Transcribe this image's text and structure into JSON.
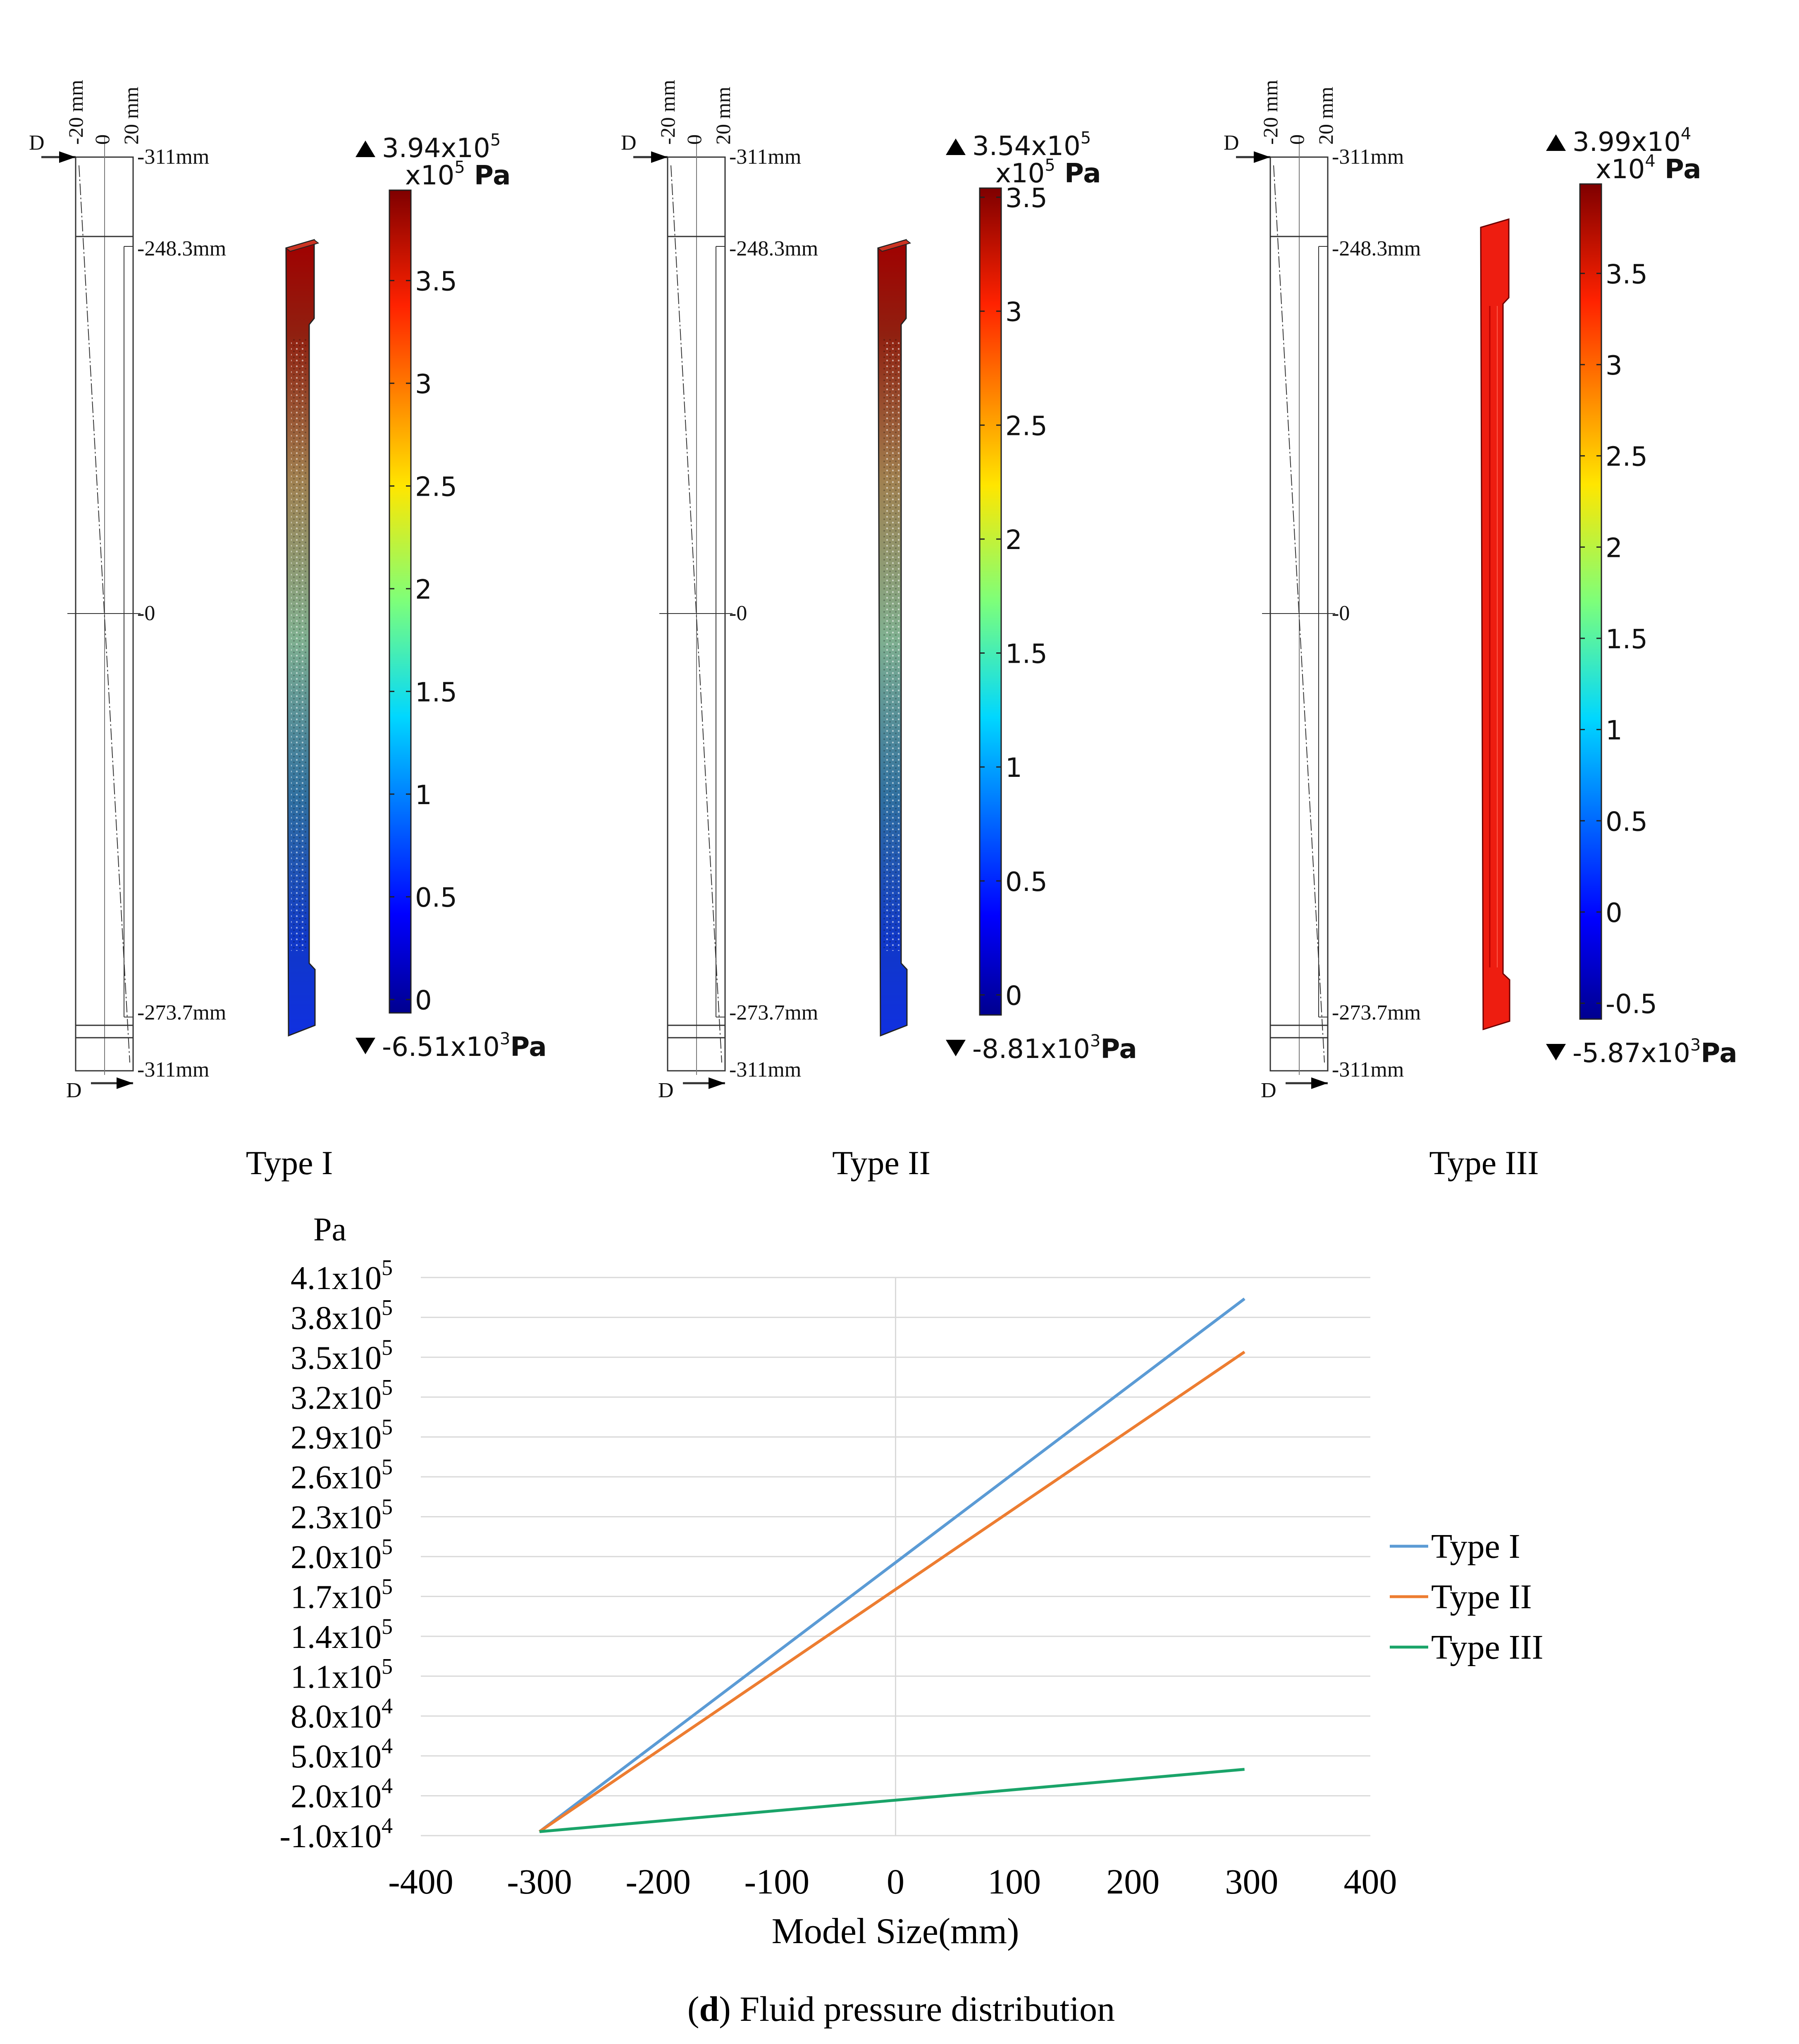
{
  "panels": [
    {
      "label": "Type I",
      "dims": {
        "top_width": "-20 mm",
        "zero": "0",
        "right_width": "20 mm",
        "section_marker": "D",
        "top": "-311mm",
        "upper": "-248.3mm",
        "middle": "-0",
        "lower": "-273.7mm",
        "bottom": "-311mm"
      },
      "legend": {
        "max_label": "3.94x10",
        "max_exp": "5",
        "unit_mult": "x10",
        "unit_exp": "5",
        "unit": "Pa",
        "min_label": "-6.51x10",
        "min_exp": "3",
        "min_unit": "Pa",
        "ticks": [
          "3.5",
          "3",
          "2.5",
          "2",
          "1.5",
          "1",
          "0.5",
          "0"
        ],
        "tick_values": [
          3.5,
          3,
          2.5,
          2,
          1.5,
          1,
          0.5,
          0
        ],
        "range": [
          -0.0651,
          3.94
        ]
      },
      "model": "gradient"
    },
    {
      "label": "Type II",
      "dims": {
        "top_width": "-20 mm",
        "zero": "0",
        "right_width": "20 mm",
        "section_marker": "D",
        "top": "-311mm",
        "upper": "-248.3mm",
        "middle": "-0",
        "lower": "-273.7mm",
        "bottom": "-311mm"
      },
      "legend": {
        "max_label": "3.54x10",
        "max_exp": "5",
        "unit_mult": "x10",
        "unit_exp": "5",
        "unit": "Pa",
        "min_label": "-8.81x10",
        "min_exp": "3",
        "min_unit": "Pa",
        "ticks": [
          "3.5",
          "3",
          "2.5",
          "2",
          "1.5",
          "1",
          "0.5",
          "0"
        ],
        "tick_values": [
          3.5,
          3,
          2.5,
          2,
          1.5,
          1,
          0.5,
          0
        ],
        "range": [
          -0.0881,
          3.54
        ]
      },
      "model": "gradient"
    },
    {
      "label": "Type III",
      "dims": {
        "top_width": "-20 mm",
        "zero": "0",
        "right_width": "20 mm",
        "section_marker": "D",
        "top": "-311mm",
        "upper": "-248.3mm",
        "middle": "-0",
        "lower": "-273.7mm",
        "bottom": "-311mm"
      },
      "legend": {
        "max_label": "3.99x10",
        "max_exp": "4",
        "unit_mult": "x10",
        "unit_exp": "4",
        "unit": "Pa",
        "min_label": "-5.87x10",
        "min_exp": "3",
        "min_unit": "Pa",
        "ticks": [
          "3.5",
          "3",
          "2.5",
          "2",
          "1.5",
          "1",
          "0.5",
          "0",
          "-0.5"
        ],
        "tick_values": [
          3.5,
          3,
          2.5,
          2,
          1.5,
          1,
          0.5,
          0,
          -0.5
        ],
        "range": [
          -0.587,
          3.99
        ]
      },
      "model": "solid"
    }
  ],
  "chart_data": {
    "type": "line",
    "ylabel": "Pa",
    "xlabel": "Model Size(mm)",
    "caption_bold": "d",
    "caption_rest": ") Fluid pressure distribution",
    "caption_open": "(",
    "xlim": [
      -400,
      400
    ],
    "ylim": [
      -10000,
      410000
    ],
    "x_ticks": [
      -400,
      -300,
      -200,
      -100,
      0,
      100,
      200,
      300,
      400
    ],
    "y_ticks": [
      {
        "value": 410000,
        "mant": "4.1x10",
        "exp": "5"
      },
      {
        "value": 380000,
        "mant": "3.8x10",
        "exp": "5"
      },
      {
        "value": 350000,
        "mant": "3.5x10",
        "exp": "5"
      },
      {
        "value": 320000,
        "mant": "3.2x10",
        "exp": "5"
      },
      {
        "value": 290000,
        "mant": "2.9x10",
        "exp": "5"
      },
      {
        "value": 260000,
        "mant": "2.6x10",
        "exp": "5"
      },
      {
        "value": 230000,
        "mant": "2.3x10",
        "exp": "5"
      },
      {
        "value": 200000,
        "mant": "2.0x10",
        "exp": "5"
      },
      {
        "value": 170000,
        "mant": "1.7x10",
        "exp": "5"
      },
      {
        "value": 140000,
        "mant": "1.4x10",
        "exp": "5"
      },
      {
        "value": 110000,
        "mant": "1.1x10",
        "exp": "5"
      },
      {
        "value": 80000,
        "mant": "8.0x10",
        "exp": "4"
      },
      {
        "value": 50000,
        "mant": "5.0x10",
        "exp": "4"
      },
      {
        "value": 20000,
        "mant": "2.0x10",
        "exp": "4"
      },
      {
        "value": -10000,
        "mant": "-1.0x10",
        "exp": "4"
      }
    ],
    "series": [
      {
        "name": "Type I",
        "color": "#5b9bd5",
        "x": [
          -300,
          294
        ],
        "y": [
          -7000,
          394000
        ]
      },
      {
        "name": "Type II",
        "color": "#ed7d31",
        "x": [
          -300,
          294
        ],
        "y": [
          -7000,
          354000
        ]
      },
      {
        "name": "Type III",
        "color": "#1aa469",
        "x": [
          -300,
          294
        ],
        "y": [
          -7000,
          39900
        ]
      }
    ]
  }
}
